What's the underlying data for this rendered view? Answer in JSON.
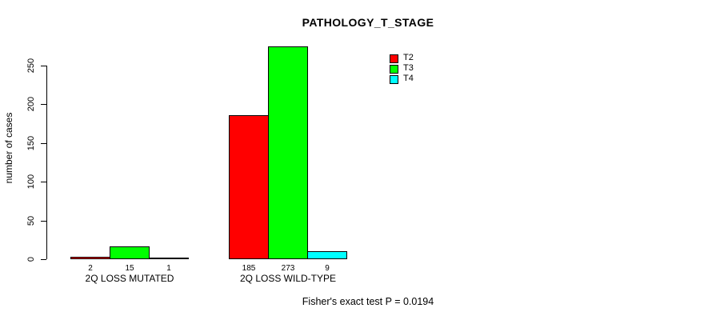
{
  "window": {
    "background_color": "#ffffff",
    "text_color": "#000000"
  },
  "chart_data": {
    "type": "bar",
    "title": "PATHOLOGY_T_STAGE",
    "ylabel": "number of cases",
    "xlabel": "",
    "categories": [
      "2Q LOSS MUTATED",
      "2Q LOSS WILD-TYPE"
    ],
    "series": [
      {
        "name": "T2",
        "color": "#ff0000",
        "values": [
          2,
          185
        ]
      },
      {
        "name": "T3",
        "color": "#00ff00",
        "values": [
          15,
          273
        ]
      },
      {
        "name": "T4",
        "color": "#00ffff",
        "values": [
          1,
          9
        ]
      }
    ],
    "bar_value_labels": [
      [
        2,
        15,
        1
      ],
      [
        185,
        273,
        9
      ]
    ],
    "yticks": [
      0,
      50,
      100,
      150,
      200,
      250
    ],
    "ylim": [
      0,
      273
    ],
    "grid": false,
    "bar_border_color": "#000000",
    "axis_color": "#000000",
    "legend_position": "top-right",
    "legend_frame": false,
    "annotation": "Fisher's exact test P = 0.0194"
  }
}
